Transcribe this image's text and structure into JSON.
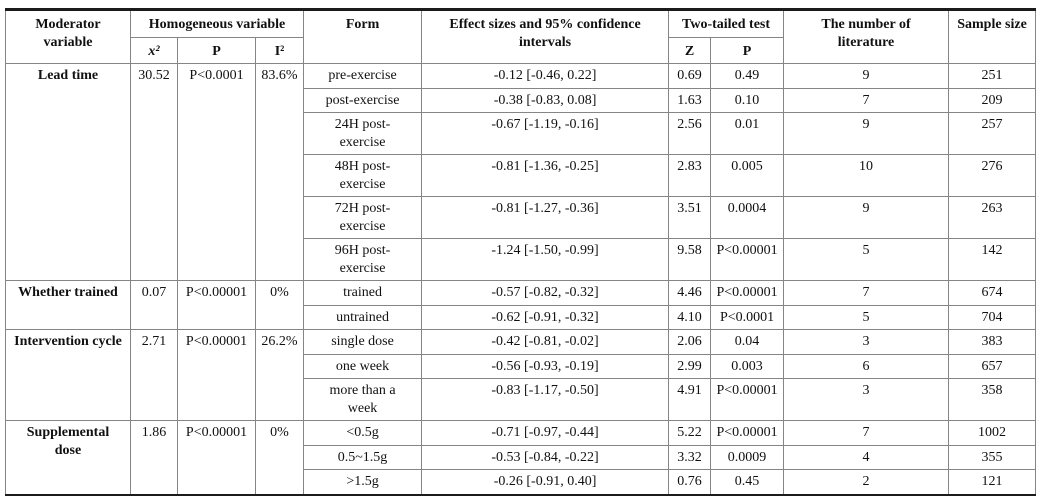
{
  "table": {
    "header": {
      "moderator_variable": "Moderator\nvariable",
      "homogeneous_variable": "Homogeneous variable",
      "chi_squared": "x²",
      "homogeneity_p": "P",
      "i_squared": "I²",
      "form": "Form",
      "effect_sizes": "Effect sizes and 95% confidence\nintervals",
      "two_tailed_test": "Two-tailed test",
      "z": "Z",
      "two_tailed_p": "P",
      "literature": "The number of\nliterature",
      "sample_size": "Sample size"
    },
    "groups": [
      {
        "moderator": "Lead time",
        "chi_squared": "30.52",
        "homogeneity_p": "P<0.0001",
        "i_squared": "83.6%",
        "rows": [
          {
            "form": "pre-exercise",
            "effect": "-0.12 [-0.46, 0.22]",
            "z": "0.69",
            "p": "0.49",
            "literature": "9",
            "sample": "251"
          },
          {
            "form": "post-exercise",
            "effect": "-0.38 [-0.83, 0.08]",
            "z": "1.63",
            "p": "0.10",
            "literature": "7",
            "sample": "209"
          },
          {
            "form": "24H post-\nexercise",
            "effect": "-0.67 [-1.19, -0.16]",
            "z": "2.56",
            "p": "0.01",
            "literature": "9",
            "sample": "257"
          },
          {
            "form": "48H post-\nexercise",
            "effect": "-0.81 [-1.36, -0.25]",
            "z": "2.83",
            "p": "0.005",
            "literature": "10",
            "sample": "276"
          },
          {
            "form": "72H post-\nexercise",
            "effect": "-0.81 [-1.27, -0.36]",
            "z": "3.51",
            "p": "0.0004",
            "literature": "9",
            "sample": "263"
          },
          {
            "form": "96H post-\nexercise",
            "effect": "-1.24 [-1.50, -0.99]",
            "z": "9.58",
            "p": "P<0.00001",
            "literature": "5",
            "sample": "142"
          }
        ]
      },
      {
        "moderator": "Whether trained",
        "chi_squared": "0.07",
        "homogeneity_p": "P<0.00001",
        "i_squared": "0%",
        "rows": [
          {
            "form": "trained",
            "effect": "-0.57 [-0.82, -0.32]",
            "z": "4.46",
            "p": "P<0.00001",
            "literature": "7",
            "sample": "674"
          },
          {
            "form": "untrained",
            "effect": "-0.62 [-0.91, -0.32]",
            "z": "4.10",
            "p": "P<0.0001",
            "literature": "5",
            "sample": "704"
          }
        ]
      },
      {
        "moderator": "Intervention cycle",
        "chi_squared": "2.71",
        "homogeneity_p": "P<0.00001",
        "i_squared": "26.2%",
        "rows": [
          {
            "form": "single dose",
            "effect": "-0.42 [-0.81, -0.02]",
            "z": "2.06",
            "p": "0.04",
            "literature": "3",
            "sample": "383"
          },
          {
            "form": "one week",
            "effect": "-0.56 [-0.93, -0.19]",
            "z": "2.99",
            "p": "0.003",
            "literature": "6",
            "sample": "657"
          },
          {
            "form": "more than a\nweek",
            "effect": "-0.83 [-1.17, -0.50]",
            "z": "4.91",
            "p": "P<0.00001",
            "literature": "3",
            "sample": "358"
          }
        ]
      },
      {
        "moderator": "Supplemental\ndose",
        "chi_squared": "1.86",
        "homogeneity_p": "P<0.00001",
        "i_squared": "0%",
        "rows": [
          {
            "form": "<0.5g",
            "effect": "-0.71 [-0.97, -0.44]",
            "z": "5.22",
            "p": "P<0.00001",
            "literature": "7",
            "sample": "1002"
          },
          {
            "form": "0.5~1.5g",
            "effect": "-0.53 [-0.84, -0.22]",
            "z": "3.32",
            "p": "0.0009",
            "literature": "4",
            "sample": "355"
          },
          {
            "form": ">1.5g",
            "effect": "-0.26 [-0.91, 0.40]",
            "z": "0.76",
            "p": "0.45",
            "literature": "2",
            "sample": "121"
          }
        ]
      }
    ]
  }
}
